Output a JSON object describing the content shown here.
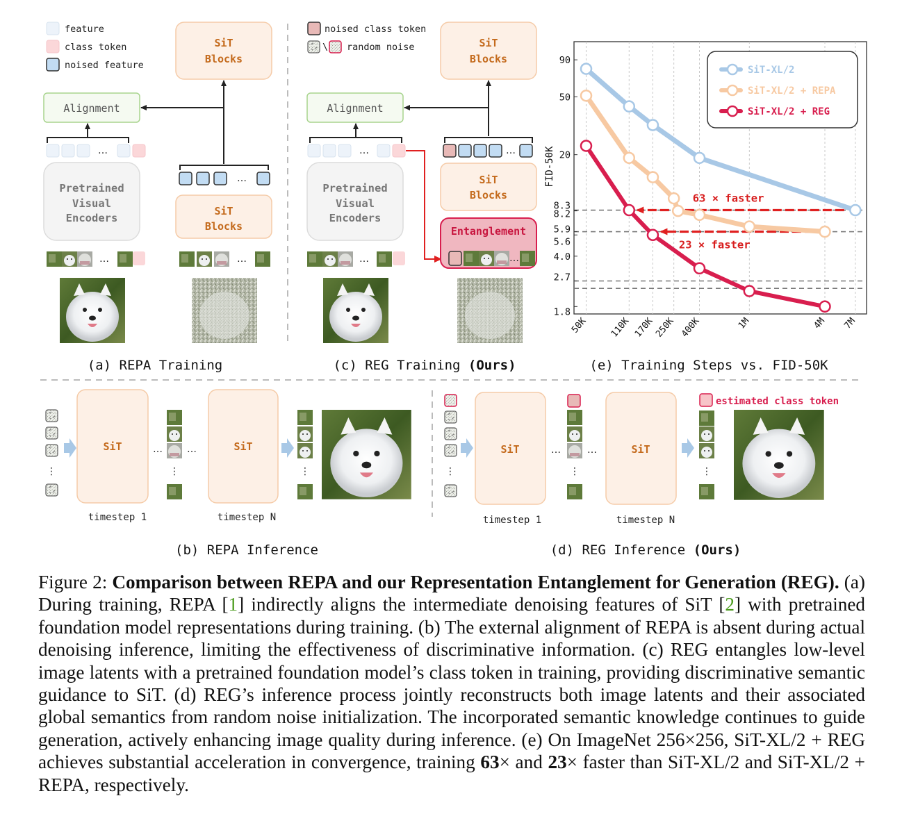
{
  "legend_a": {
    "feature": "feature",
    "class_token": "class token",
    "noised_feature": "noised feature"
  },
  "legend_c": {
    "noised_class_token": "noised class token",
    "random_noise": "random noise",
    "backslash": "\\"
  },
  "blocks": {
    "sit": "SiT",
    "blocks": "Blocks",
    "alignment": "Alignment",
    "pretrained_1": "Pretrained",
    "pretrained_2": "Visual",
    "pretrained_3": "Encoders",
    "entanglement": "Entanglement",
    "ellipsis": "…",
    "vdots": "⋮"
  },
  "panel_titles": {
    "a": "(a) REPA Training",
    "c_prefix": "(c) REG Training ",
    "c_ours": "(Ours)",
    "e": "(e) Training Steps vs. FID-50K",
    "b": "(b) REPA Inference",
    "d_prefix": "(d) REG Inference ",
    "d_ours": "(Ours)"
  },
  "inference": {
    "timestep_1": "timestep 1",
    "timestep_n": "timestep N",
    "estimated_class_token": "estimated class token"
  },
  "colors": {
    "blue": "#a8c8e6",
    "orange": "#f7c9a2",
    "red": "#d81e4e",
    "arrow_red": "#e02020",
    "sit_fill": "#fdf0e6",
    "sit_stroke": "#f5cba8",
    "sit_text": "#c46a1c"
  },
  "chart_data": {
    "type": "line",
    "title": "(e) Training Steps vs. FID-50K",
    "xlabel": "",
    "ylabel": "FID-50K",
    "xscale": "log",
    "yscale": "log",
    "x_tick_labels": [
      "50K",
      "110K",
      "170K",
      "250K",
      "400K",
      "1M",
      "4M",
      "7M"
    ],
    "x_tick_values": [
      50000,
      110000,
      170000,
      250000,
      400000,
      1000000,
      4000000,
      7000000
    ],
    "y_tick_labels": [
      "90",
      "50",
      "20",
      "8.3",
      "8.2",
      "5.9",
      "5.6",
      "4.0",
      "2.7",
      "1.8"
    ],
    "y_tick_values": [
      90,
      50,
      20,
      8.3,
      8.2,
      5.9,
      5.6,
      4.0,
      2.7,
      1.8
    ],
    "series": [
      {
        "name": "SiT-XL/2",
        "x": [
          50000,
          110000,
          170000,
          400000,
          7000000
        ],
        "y": [
          78,
          43,
          32,
          19,
          8.3
        ]
      },
      {
        "name": "SiT-XL/2 + REPA",
        "x": [
          50000,
          110000,
          170000,
          250000,
          270000,
          400000,
          1000000,
          4000000
        ],
        "y": [
          51,
          19,
          14,
          10,
          8.2,
          7.7,
          6.4,
          5.9
        ]
      },
      {
        "name": "SiT-XL/2 + REG",
        "x": [
          50000,
          110000,
          170000,
          400000,
          1000000,
          4000000
        ],
        "y": [
          23,
          8.3,
          5.6,
          3.3,
          2.3,
          1.8
        ]
      }
    ],
    "legend_position": "top-right",
    "annotations": [
      {
        "text": "63 × faster",
        "from_x": 7000000,
        "to_x": 110000,
        "y": 8.3
      },
      {
        "text": "23 × faster",
        "from_x": 4000000,
        "to_x": 170000,
        "y": 5.9
      }
    ],
    "hlines": [
      8.3,
      5.9,
      2.7,
      2.4
    ]
  },
  "caption": {
    "figure_label": "Figure 2: ",
    "bold_title": "Comparison between REPA and our Representation Entanglement for Generation (REG).",
    "s1_pre": " (a) During training, REPA [",
    "ref1": "1",
    "s1_mid": "] indirectly aligns the intermediate denoising features of SiT [",
    "ref2": "2",
    "s1_post": "] with pretrained foundation model representations during training. (b) The external alignment of REPA is absent during actual denoising inference, limiting the effectiveness of discriminative information. (c) REG entangles low-level image latents with a pretrained foundation model’s class token in training, providing discriminative semantic guidance to SiT. (d) REG’s inference process jointly reconstructs both image latents and their associated global semantics from random noise initialization. The incorporated semantic knowledge continues to guide generation, actively enhancing image quality during inference. (e) On ImageNet 256×256, SiT-XL/2 + REG achieves substantial acceleration in convergence, training ",
    "n63": "63",
    "times1": "× and ",
    "n23": "23",
    "times2": "× faster than SiT-XL/2 and SiT-XL/2 + REPA, respectively."
  }
}
